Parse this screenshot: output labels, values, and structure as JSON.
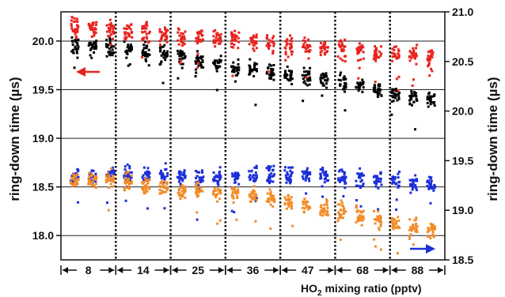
{
  "chart_data": {
    "type": "scatter",
    "xlabel_parts": [
      "HO",
      "2",
      " mixing ratio (pptv)"
    ],
    "ylabel_left": "ring-down time (µs)",
    "ylabel_right": "ring-down time (µs)",
    "ylim_left": [
      17.75,
      20.3
    ],
    "ylim_right": [
      18.5,
      21.0
    ],
    "yticks_left": [
      "18.0",
      "18.5",
      "19.0",
      "19.5",
      "20.0"
    ],
    "yticks_right": [
      "18.5",
      "19.0",
      "19.5",
      "20.0",
      "20.5",
      "21.0"
    ],
    "segments": [
      "8",
      "14",
      "25",
      "36",
      "47",
      "68",
      "88"
    ],
    "grid": true,
    "arrow_left_color": "#e8231e",
    "arrow_right_color": "#1c2fd8",
    "series": [
      {
        "axis": "left",
        "color": "#000000",
        "centers": [
          19.95,
          19.93,
          19.88,
          19.82,
          19.72,
          19.68,
          19.62,
          19.55,
          19.45,
          19.4
        ]
      },
      {
        "axis": "right",
        "color": "#e8231e",
        "centers": [
          20.85,
          20.82,
          20.78,
          20.74,
          20.72,
          20.68,
          20.65,
          20.62,
          20.58,
          20.55
        ]
      },
      {
        "axis": "left",
        "color": "#1c2fd8",
        "centers": [
          18.62,
          18.63,
          18.62,
          18.58,
          18.6,
          18.64,
          18.62,
          18.6,
          18.56,
          18.52
        ]
      },
      {
        "axis": "left",
        "color": "#f28c28",
        "centers": [
          18.58,
          18.57,
          18.5,
          18.45,
          18.45,
          18.38,
          18.3,
          18.22,
          18.12,
          18.05
        ]
      }
    ]
  }
}
